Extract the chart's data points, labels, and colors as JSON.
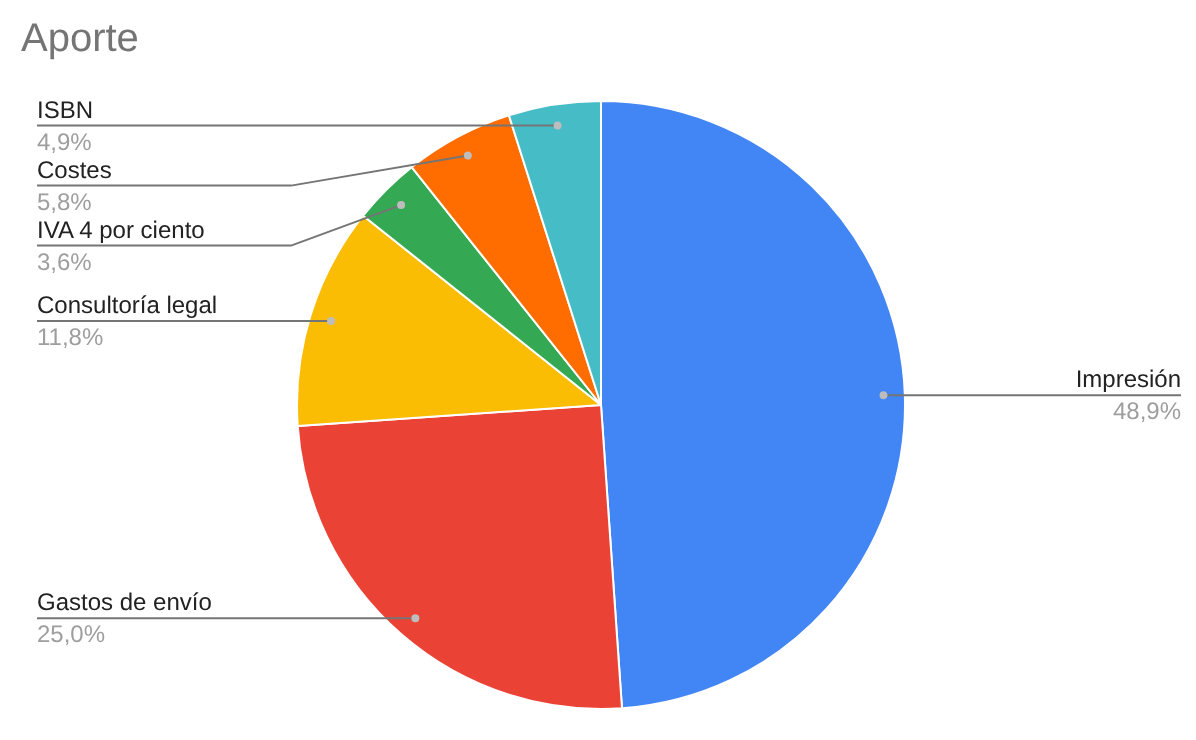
{
  "chart_data": {
    "type": "pie",
    "title": "Aporte",
    "categories": [
      "Impresión",
      "Gastos de envío",
      "Consultoría legal",
      "IVA 4 por ciento",
      "Costes",
      "ISBN"
    ],
    "values": [
      48.9,
      25.0,
      11.8,
      3.6,
      5.8,
      4.9
    ],
    "value_labels": [
      "48,9%",
      "25,0%",
      "11,8%",
      "3,6%",
      "5,8%",
      "4,9%"
    ],
    "colors": [
      "#4285f4",
      "#ea4335",
      "#fbbc04",
      "#34a853",
      "#ff6d01",
      "#46bdc6"
    ]
  }
}
